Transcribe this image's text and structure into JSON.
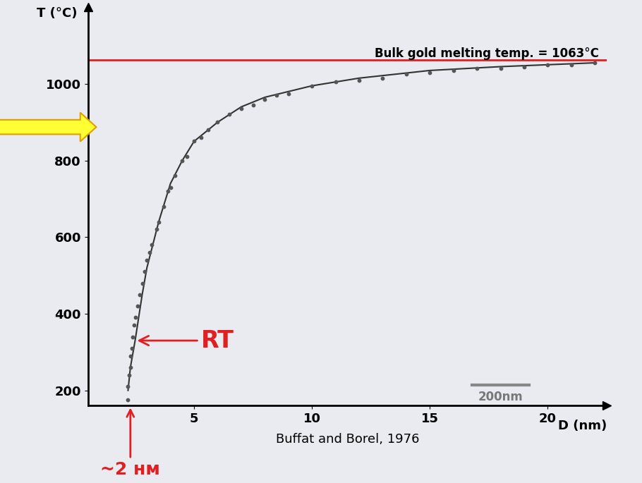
{
  "chart_data": {
    "type": "scatter",
    "x_label": "D (nm)",
    "y_label": "T (°C)",
    "xlim": [
      0.5,
      22.5
    ],
    "ylim": [
      160,
      1200
    ],
    "xticks": [
      5,
      10,
      15,
      20
    ],
    "yticks": [
      200,
      400,
      600,
      800,
      1000
    ],
    "grid": false,
    "series": [
      {
        "type": "scatter",
        "color": "#555555",
        "marker": "dot",
        "x": [
          2.2,
          2.2,
          2.25,
          2.3,
          2.3,
          2.35,
          2.4,
          2.45,
          2.5,
          2.6,
          2.7,
          2.8,
          2.9,
          3.0,
          3.1,
          3.2,
          3.4,
          3.5,
          3.7,
          3.9,
          4.0,
          4.2,
          4.5,
          4.7,
          5.0,
          5.3,
          5.6,
          6.0,
          6.5,
          7.0,
          7.5,
          8.0,
          8.5,
          9.0,
          10.0,
          11.0,
          12.0,
          13.0,
          14.0,
          15.0,
          16.0,
          17.0,
          18.0,
          19.0,
          20.0,
          21.0,
          22.0
        ],
        "values": [
          176,
          210,
          240,
          260,
          290,
          310,
          340,
          370,
          390,
          420,
          450,
          480,
          510,
          540,
          560,
          580,
          620,
          640,
          680,
          720,
          730,
          760,
          800,
          810,
          850,
          860,
          880,
          900,
          920,
          935,
          945,
          960,
          970,
          975,
          995,
          1005,
          1010,
          1015,
          1025,
          1030,
          1035,
          1040,
          1040,
          1045,
          1050,
          1050,
          1055
        ]
      },
      {
        "type": "line",
        "color": "#333333",
        "line_style": "solid",
        "x": [
          2.2,
          2.3,
          2.5,
          2.8,
          3.0,
          3.5,
          4.0,
          4.5,
          5.0,
          6.0,
          7.0,
          8.0,
          10.0,
          12.0,
          15.0,
          18.0,
          22.0
        ],
        "values": [
          200,
          260,
          330,
          450,
          520,
          640,
          740,
          800,
          850,
          900,
          940,
          965,
          995,
          1015,
          1035,
          1045,
          1055
        ]
      }
    ],
    "reference_line": {
      "value": 1063,
      "label": "Bulk gold melting temp. = 1063°C",
      "color": "#e02020"
    },
    "annotations": [
      {
        "text": "RT",
        "x": 2.5,
        "y": 330,
        "color": "#e02020"
      },
      {
        "text": "~2 нм",
        "x": 2.3,
        "color": "#e02020"
      }
    ],
    "source": "Buffat and Borel, 1976",
    "scale_bar": "200nm"
  }
}
